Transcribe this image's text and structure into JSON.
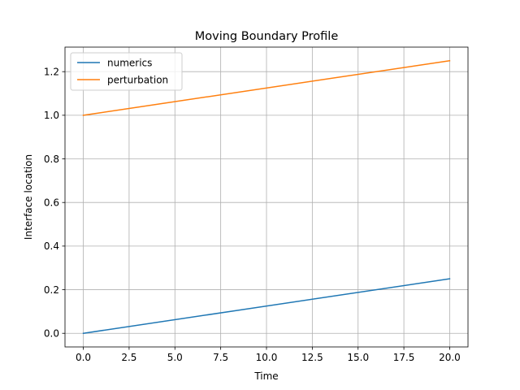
{
  "chart_data": {
    "type": "line",
    "title": "Moving Boundary Profile",
    "xlabel": "Time",
    "ylabel": "Interface location",
    "xlim": [
      -1.0,
      21.0
    ],
    "ylim": [
      -0.0625,
      1.3125
    ],
    "xticks": [
      0.0,
      2.5,
      5.0,
      7.5,
      10.0,
      12.5,
      15.0,
      17.5,
      20.0
    ],
    "xtick_labels": [
      "0.0",
      "2.5",
      "5.0",
      "7.5",
      "10.0",
      "12.5",
      "15.0",
      "17.5",
      "20.0"
    ],
    "yticks": [
      0.0,
      0.2,
      0.4,
      0.6,
      0.8,
      1.0,
      1.2
    ],
    "ytick_labels": [
      "0.0",
      "0.2",
      "0.4",
      "0.6",
      "0.8",
      "1.0",
      "1.2"
    ],
    "grid": true,
    "legend_position": "top-left",
    "series": [
      {
        "name": "numerics",
        "color": "#1f77b4",
        "x": [
          0,
          20
        ],
        "y": [
          0.0,
          0.25
        ]
      },
      {
        "name": "perturbation",
        "color": "#ff7f0e",
        "x": [
          0,
          20
        ],
        "y": [
          1.0,
          1.25
        ]
      }
    ]
  }
}
